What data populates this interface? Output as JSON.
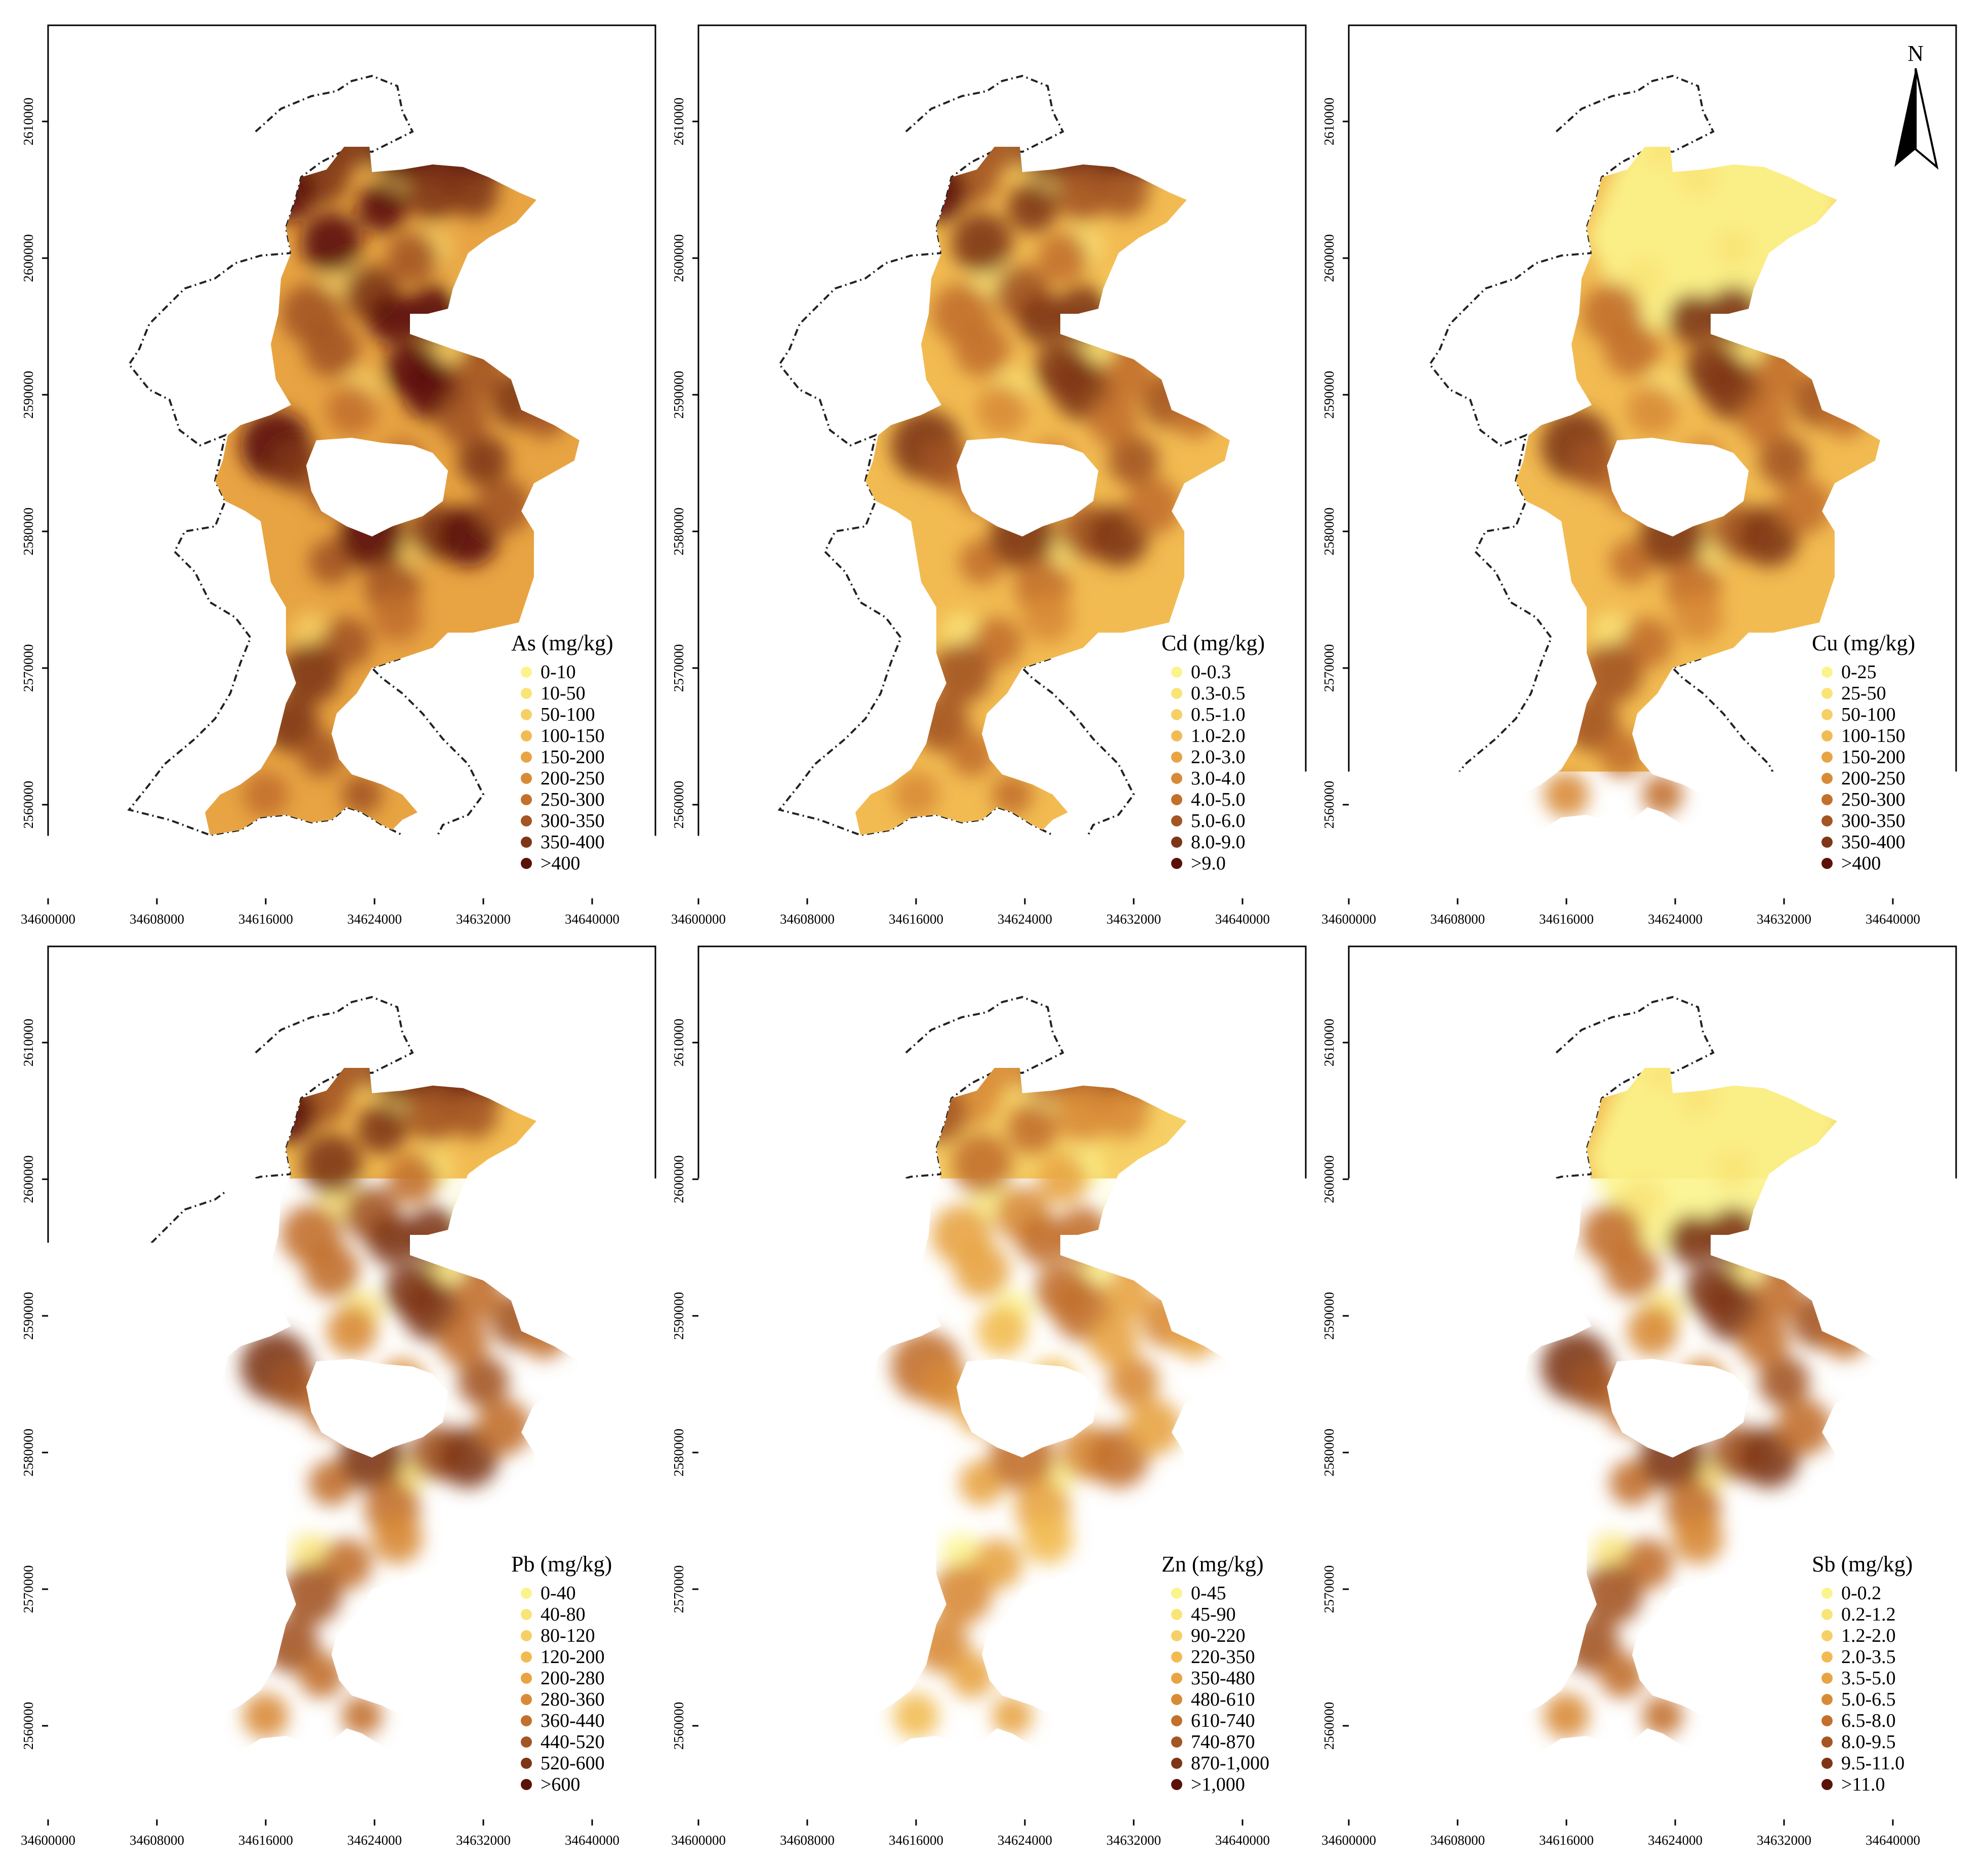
{
  "x_ticks": [
    "34600000",
    "34608000",
    "34616000",
    "34624000",
    "34632000",
    "34640000"
  ],
  "y_ticks": [
    "2610000",
    "2600000",
    "2590000",
    "2580000",
    "2570000",
    "2560000"
  ],
  "north_arrow": {
    "label": "N",
    "icon": "north-arrow-icon"
  },
  "palette": [
    "#fbf48c",
    "#f9e478",
    "#f6d066",
    "#f2bb52",
    "#e8a443",
    "#d88b36",
    "#c2702c",
    "#a35523",
    "#7e3616",
    "#5a1208"
  ],
  "panels": [
    {
      "id": "as",
      "title": "As (mg/kg)",
      "ranges": [
        "0-10",
        "10-50",
        "50-100",
        "100-150",
        "150-200",
        "200-250",
        "250-300",
        "300-350",
        "350-400",
        ">400"
      ],
      "base_level": 4,
      "north_light": false
    },
    {
      "id": "cd",
      "title": "Cd (mg/kg)",
      "ranges": [
        "0-0.3",
        "0.3-0.5",
        "0.5-1.0",
        "1.0-2.0",
        "2.0-3.0",
        "3.0-4.0",
        "4.0-5.0",
        "5.0-6.0",
        "8.0-9.0",
        ">9.0"
      ],
      "base_level": 3,
      "north_light": false
    },
    {
      "id": "cu",
      "title": "Cu (mg/kg)",
      "ranges": [
        "0-25",
        "25-50",
        "50-100",
        "100-150",
        "150-200",
        "200-250",
        "250-300",
        "300-350",
        "350-400",
        ">400"
      ],
      "base_level": 3,
      "north_light": true
    },
    {
      "id": "pb",
      "title": "Pb (mg/kg)",
      "ranges": [
        "0-40",
        "40-80",
        "80-120",
        "120-200",
        "200-280",
        "280-360",
        "360-440",
        "440-520",
        "520-600",
        ">600"
      ],
      "base_level": 3,
      "north_light": false
    },
    {
      "id": "zn",
      "title": "Zn (mg/kg)",
      "ranges": [
        "0-45",
        "45-90",
        "90-220",
        "220-350",
        "350-480",
        "480-610",
        "610-740",
        "740-870",
        "870-1,000",
        ">1,000"
      ],
      "base_level": 2,
      "north_light": false
    },
    {
      "id": "sb",
      "title": "Sb (mg/kg)",
      "ranges": [
        "0-0.2",
        "0.2-1.2",
        "1.2-2.0",
        "2.0-3.5",
        "3.5-5.0",
        "5.0-6.5",
        "6.5-8.0",
        "8.0-9.5",
        "9.5-11.0",
        ">11.0"
      ],
      "base_level": 3,
      "north_light": true
    }
  ]
}
